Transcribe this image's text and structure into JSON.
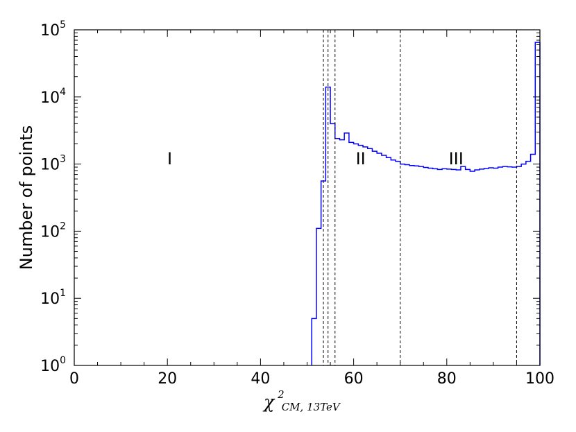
{
  "chart_data": {
    "type": "histogram",
    "title": "",
    "xlabel": {
      "symbol": "χ",
      "superscript": "2",
      "subscript": "CM, 13TeV"
    },
    "ylabel": "Number of points",
    "xlim": [
      0,
      100
    ],
    "ylim": [
      1,
      100000
    ],
    "yscale": "log",
    "x_ticks": [
      0,
      20,
      40,
      60,
      80,
      100
    ],
    "x_tick_labels": [
      "0",
      "20",
      "40",
      "60",
      "80",
      "100"
    ],
    "y_ticks": [
      {
        "value": 1,
        "base": "10",
        "exp": "0"
      },
      {
        "value": 10,
        "base": "10",
        "exp": "1"
      },
      {
        "value": 100,
        "base": "10",
        "exp": "2"
      },
      {
        "value": 1000,
        "base": "10",
        "exp": "3"
      },
      {
        "value": 10000,
        "base": "10",
        "exp": "4"
      },
      {
        "value": 100000,
        "base": "10",
        "exp": "5"
      }
    ],
    "series": [
      {
        "color": "#0000ff",
        "bin_edges": [
          51,
          52,
          53,
          54,
          55,
          56,
          57,
          58,
          59,
          60,
          61,
          62,
          63,
          64,
          65,
          66,
          67,
          68,
          69,
          70,
          71,
          72,
          73,
          74,
          75,
          76,
          77,
          78,
          79,
          80,
          81,
          82,
          83,
          84,
          85,
          86,
          87,
          88,
          89,
          90,
          91,
          92,
          93,
          94,
          95,
          96,
          97,
          98,
          99,
          100
        ],
        "counts": [
          5,
          110,
          560,
          14000,
          4000,
          2400,
          2300,
          2900,
          2100,
          2000,
          1900,
          1800,
          1700,
          1550,
          1450,
          1350,
          1250,
          1150,
          1100,
          1000,
          980,
          950,
          940,
          920,
          890,
          870,
          850,
          830,
          850,
          840,
          830,
          820,
          920,
          830,
          780,
          820,
          840,
          860,
          880,
          870,
          900,
          920,
          910,
          900,
          920,
          1000,
          1100,
          1400,
          65000
        ]
      }
    ],
    "vlines": [
      53.5,
      54.5,
      56,
      70,
      95
    ],
    "vline_style": "dashed",
    "regions": [
      {
        "label": "I",
        "x": 20.5,
        "y": 1200
      },
      {
        "label": "II",
        "x": 61.5,
        "y": 1200
      },
      {
        "label": "III",
        "x": 82,
        "y": 1200
      }
    ],
    "grid": false,
    "legend": "none"
  }
}
